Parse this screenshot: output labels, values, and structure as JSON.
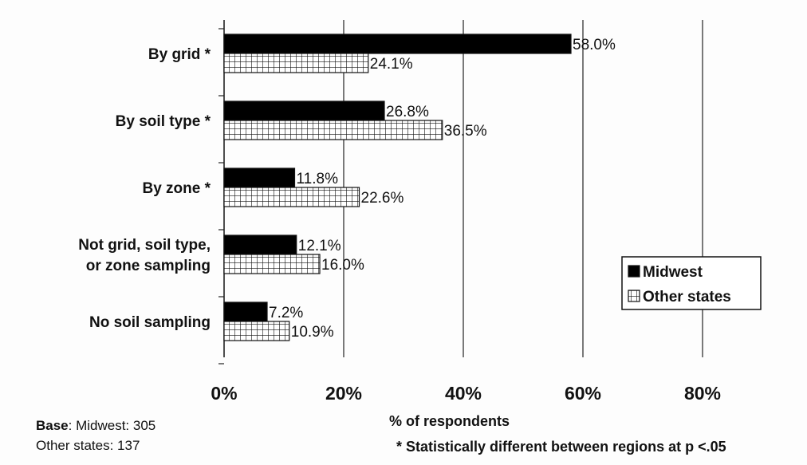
{
  "chart_data": {
    "type": "bar",
    "orientation": "horizontal",
    "categories": [
      [
        "By grid *"
      ],
      [
        "By soil type *"
      ],
      [
        "By zone *"
      ],
      [
        "Not grid, soil type,",
        "or zone sampling"
      ],
      [
        "No soil sampling"
      ]
    ],
    "series": [
      {
        "name": "Midwest",
        "values": [
          58.0,
          26.8,
          11.8,
          12.1,
          7.2
        ],
        "labels": [
          "58.0%",
          "26.8%",
          "11.8%",
          "12.1%",
          "7.2%"
        ],
        "fill": "solid",
        "color": "#000000"
      },
      {
        "name": "Other states",
        "values": [
          24.1,
          36.5,
          22.6,
          16.0,
          10.9
        ],
        "labels": [
          "24.1%",
          "36.5%",
          "22.6%",
          "16.0%",
          "10.9%"
        ],
        "fill": "grid-hatch",
        "color": "#000000"
      }
    ],
    "xlim": [
      0,
      80
    ],
    "xticks": [
      "0%",
      "20%",
      "40%",
      "60%",
      "80%"
    ],
    "xlabel": "% of respondents",
    "ylabel": "",
    "grid": "vertical",
    "legend": "right"
  },
  "footer": {
    "base_label": "Base",
    "base_midwest": ": Midwest: 305",
    "base_other": "Other states: 137"
  },
  "note": "* Statistically different between regions at p <.05"
}
